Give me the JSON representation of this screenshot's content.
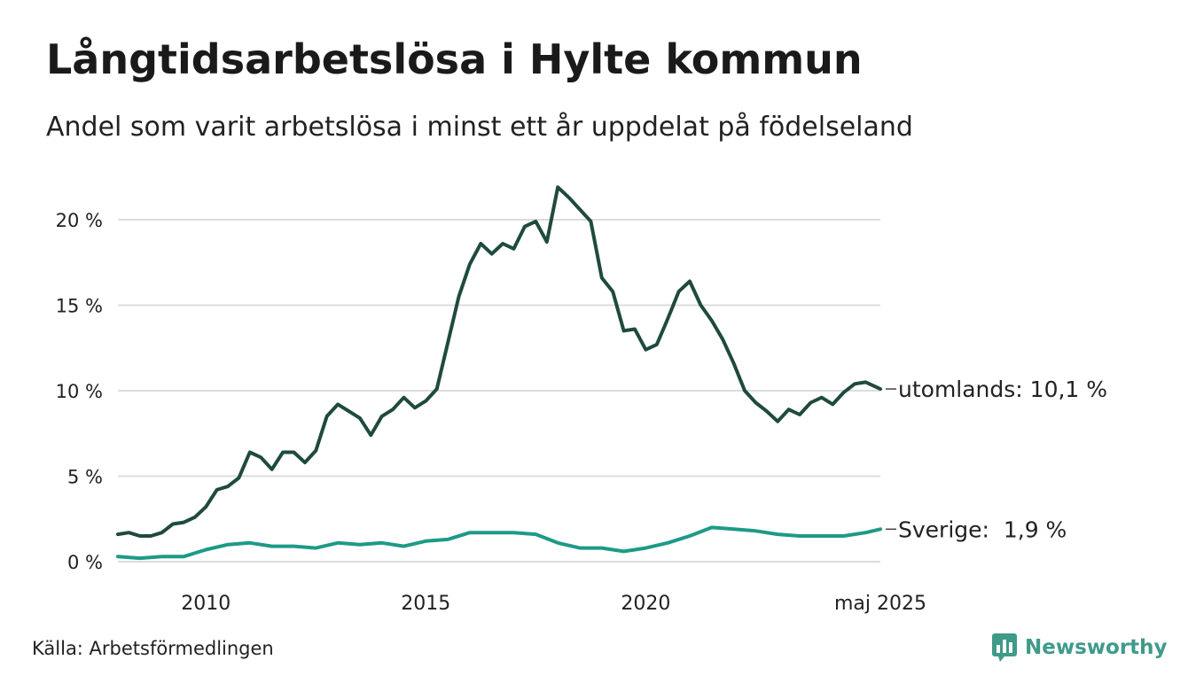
{
  "title": "Långtidsarbetslösa i Hylte kommun",
  "subtitle": "Andel som varit arbetslösa i minst ett år uppdelat på födelseland",
  "source": "Källa: Arbetsförmedlingen",
  "brand": "Newsworthy",
  "chart_data": {
    "type": "line",
    "title": "Långtidsarbetslösa i Hylte kommun",
    "subtitle": "Andel som varit arbetslösa i minst ett år uppdelat på födelseland",
    "xlabel": "",
    "ylabel": "",
    "ylim": [
      0,
      22
    ],
    "yticks": [
      0,
      5,
      10,
      15,
      20
    ],
    "ytick_labels": [
      "0 %",
      "5 %",
      "10 %",
      "15 %",
      "20 %"
    ],
    "xlim": [
      "2008-01",
      "2025-05"
    ],
    "xticks": [
      "2010-01",
      "2015-01",
      "2020-01",
      "2025-05"
    ],
    "xtick_labels": [
      "2010",
      "2015",
      "2020",
      "maj 2025"
    ],
    "grid": true,
    "legend": "direct labels at line ends",
    "end_labels": [
      "utomlands: 10,1 %",
      "Sverige:  1,9 %"
    ],
    "series": [
      {
        "name": "utomlands",
        "color": "#1f4a3f",
        "points": [
          [
            "2008-01",
            1.6
          ],
          [
            "2008-04",
            1.7
          ],
          [
            "2008-07",
            1.5
          ],
          [
            "2008-10",
            1.5
          ],
          [
            "2009-01",
            1.7
          ],
          [
            "2009-04",
            2.2
          ],
          [
            "2009-07",
            2.3
          ],
          [
            "2009-10",
            2.6
          ],
          [
            "2010-01",
            3.2
          ],
          [
            "2010-04",
            4.2
          ],
          [
            "2010-07",
            4.4
          ],
          [
            "2010-10",
            4.9
          ],
          [
            "2011-01",
            6.4
          ],
          [
            "2011-04",
            6.1
          ],
          [
            "2011-07",
            5.4
          ],
          [
            "2011-10",
            6.4
          ],
          [
            "2012-01",
            6.4
          ],
          [
            "2012-04",
            5.8
          ],
          [
            "2012-07",
            6.5
          ],
          [
            "2012-10",
            8.5
          ],
          [
            "2013-01",
            9.2
          ],
          [
            "2013-04",
            8.8
          ],
          [
            "2013-07",
            8.4
          ],
          [
            "2013-10",
            7.4
          ],
          [
            "2014-01",
            8.5
          ],
          [
            "2014-04",
            8.9
          ],
          [
            "2014-07",
            9.6
          ],
          [
            "2014-10",
            9.0
          ],
          [
            "2015-01",
            9.4
          ],
          [
            "2015-04",
            10.1
          ],
          [
            "2015-07",
            12.8
          ],
          [
            "2015-10",
            15.5
          ],
          [
            "2016-01",
            17.4
          ],
          [
            "2016-04",
            18.6
          ],
          [
            "2016-07",
            18.0
          ],
          [
            "2016-10",
            18.6
          ],
          [
            "2017-01",
            18.3
          ],
          [
            "2017-04",
            19.6
          ],
          [
            "2017-07",
            19.9
          ],
          [
            "2017-10",
            18.7
          ],
          [
            "2018-01",
            21.9
          ],
          [
            "2018-04",
            21.3
          ],
          [
            "2018-07",
            20.6
          ],
          [
            "2018-10",
            19.9
          ],
          [
            "2019-01",
            16.6
          ],
          [
            "2019-04",
            15.8
          ],
          [
            "2019-07",
            13.5
          ],
          [
            "2019-10",
            13.6
          ],
          [
            "2020-01",
            12.4
          ],
          [
            "2020-04",
            12.7
          ],
          [
            "2020-07",
            14.2
          ],
          [
            "2020-10",
            15.8
          ],
          [
            "2021-01",
            16.4
          ],
          [
            "2021-04",
            15.0
          ],
          [
            "2021-07",
            14.1
          ],
          [
            "2021-10",
            13.0
          ],
          [
            "2022-01",
            11.6
          ],
          [
            "2022-04",
            10.0
          ],
          [
            "2022-07",
            9.3
          ],
          [
            "2022-10",
            8.8
          ],
          [
            "2023-01",
            8.2
          ],
          [
            "2023-04",
            8.9
          ],
          [
            "2023-07",
            8.6
          ],
          [
            "2023-10",
            9.3
          ],
          [
            "2024-01",
            9.6
          ],
          [
            "2024-04",
            9.2
          ],
          [
            "2024-07",
            9.9
          ],
          [
            "2024-10",
            10.4
          ],
          [
            "2025-01",
            10.5
          ],
          [
            "2025-05",
            10.1
          ]
        ]
      },
      {
        "name": "Sverige",
        "color": "#1d9a87",
        "points": [
          [
            "2008-01",
            0.3
          ],
          [
            "2008-07",
            0.2
          ],
          [
            "2009-01",
            0.3
          ],
          [
            "2009-07",
            0.3
          ],
          [
            "2010-01",
            0.7
          ],
          [
            "2010-07",
            1.0
          ],
          [
            "2011-01",
            1.1
          ],
          [
            "2011-07",
            0.9
          ],
          [
            "2012-01",
            0.9
          ],
          [
            "2012-07",
            0.8
          ],
          [
            "2013-01",
            1.1
          ],
          [
            "2013-07",
            1.0
          ],
          [
            "2014-01",
            1.1
          ],
          [
            "2014-07",
            0.9
          ],
          [
            "2015-01",
            1.2
          ],
          [
            "2015-07",
            1.3
          ],
          [
            "2016-01",
            1.7
          ],
          [
            "2016-07",
            1.7
          ],
          [
            "2017-01",
            1.7
          ],
          [
            "2017-07",
            1.6
          ],
          [
            "2018-01",
            1.1
          ],
          [
            "2018-07",
            0.8
          ],
          [
            "2019-01",
            0.8
          ],
          [
            "2019-07",
            0.6
          ],
          [
            "2020-01",
            0.8
          ],
          [
            "2020-07",
            1.1
          ],
          [
            "2021-01",
            1.5
          ],
          [
            "2021-07",
            2.0
          ],
          [
            "2022-01",
            1.9
          ],
          [
            "2022-07",
            1.8
          ],
          [
            "2023-01",
            1.6
          ],
          [
            "2023-07",
            1.5
          ],
          [
            "2024-01",
            1.5
          ],
          [
            "2024-07",
            1.5
          ],
          [
            "2025-01",
            1.7
          ],
          [
            "2025-05",
            1.9
          ]
        ]
      }
    ]
  }
}
